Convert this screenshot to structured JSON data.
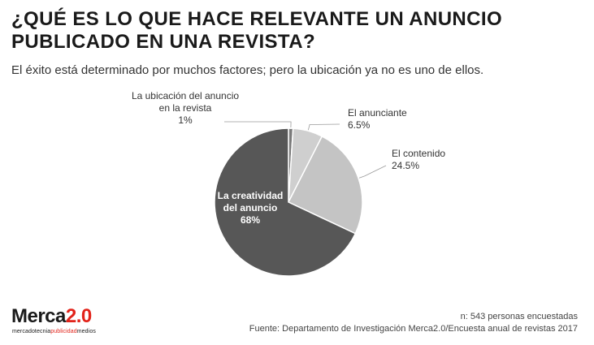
{
  "title_line1": "¿QUÉ ES LO QUE HACE RELEVANTE UN ANUNCIO",
  "title_line2": "PUBLICADO EN UNA REVISTA?",
  "subtitle": "El éxito está determinado por muchos factores; pero la ubicación ya no es uno de ellos.",
  "chart_data": {
    "type": "pie",
    "slices": [
      {
        "label": [
          "La ubicación del anuncio",
          "en la revista"
        ],
        "value": 1,
        "value_label": "1%",
        "color": "#7a7a7a",
        "key": "ubicacion"
      },
      {
        "label": [
          "El anunciante"
        ],
        "value": 6.5,
        "value_label": "6.5%",
        "color": "#cfcfcf",
        "key": "anunciante"
      },
      {
        "label": [
          "El contenido"
        ],
        "value": 24.5,
        "value_label": "24.5%",
        "color": "#c4c4c4",
        "key": "contenido"
      },
      {
        "label": [
          "La creatividad",
          "del anuncio"
        ],
        "value": 68,
        "value_label": "68%",
        "color": "#575757",
        "key": "creatividad"
      }
    ]
  },
  "footer": {
    "sample_note": "n: 543 personas encuestadas",
    "source": "Fuente: Departamento de Investigación Merca2.0/Encuesta anual de revistas 2017"
  },
  "logo": {
    "main_a": "Merca",
    "main_b": "2.0",
    "sub_a": "mercadotecnia",
    "sub_b": "publicidad",
    "sub_c": "medios",
    "color_text": "#1a1a1a",
    "color_accent": "#e2231a"
  }
}
